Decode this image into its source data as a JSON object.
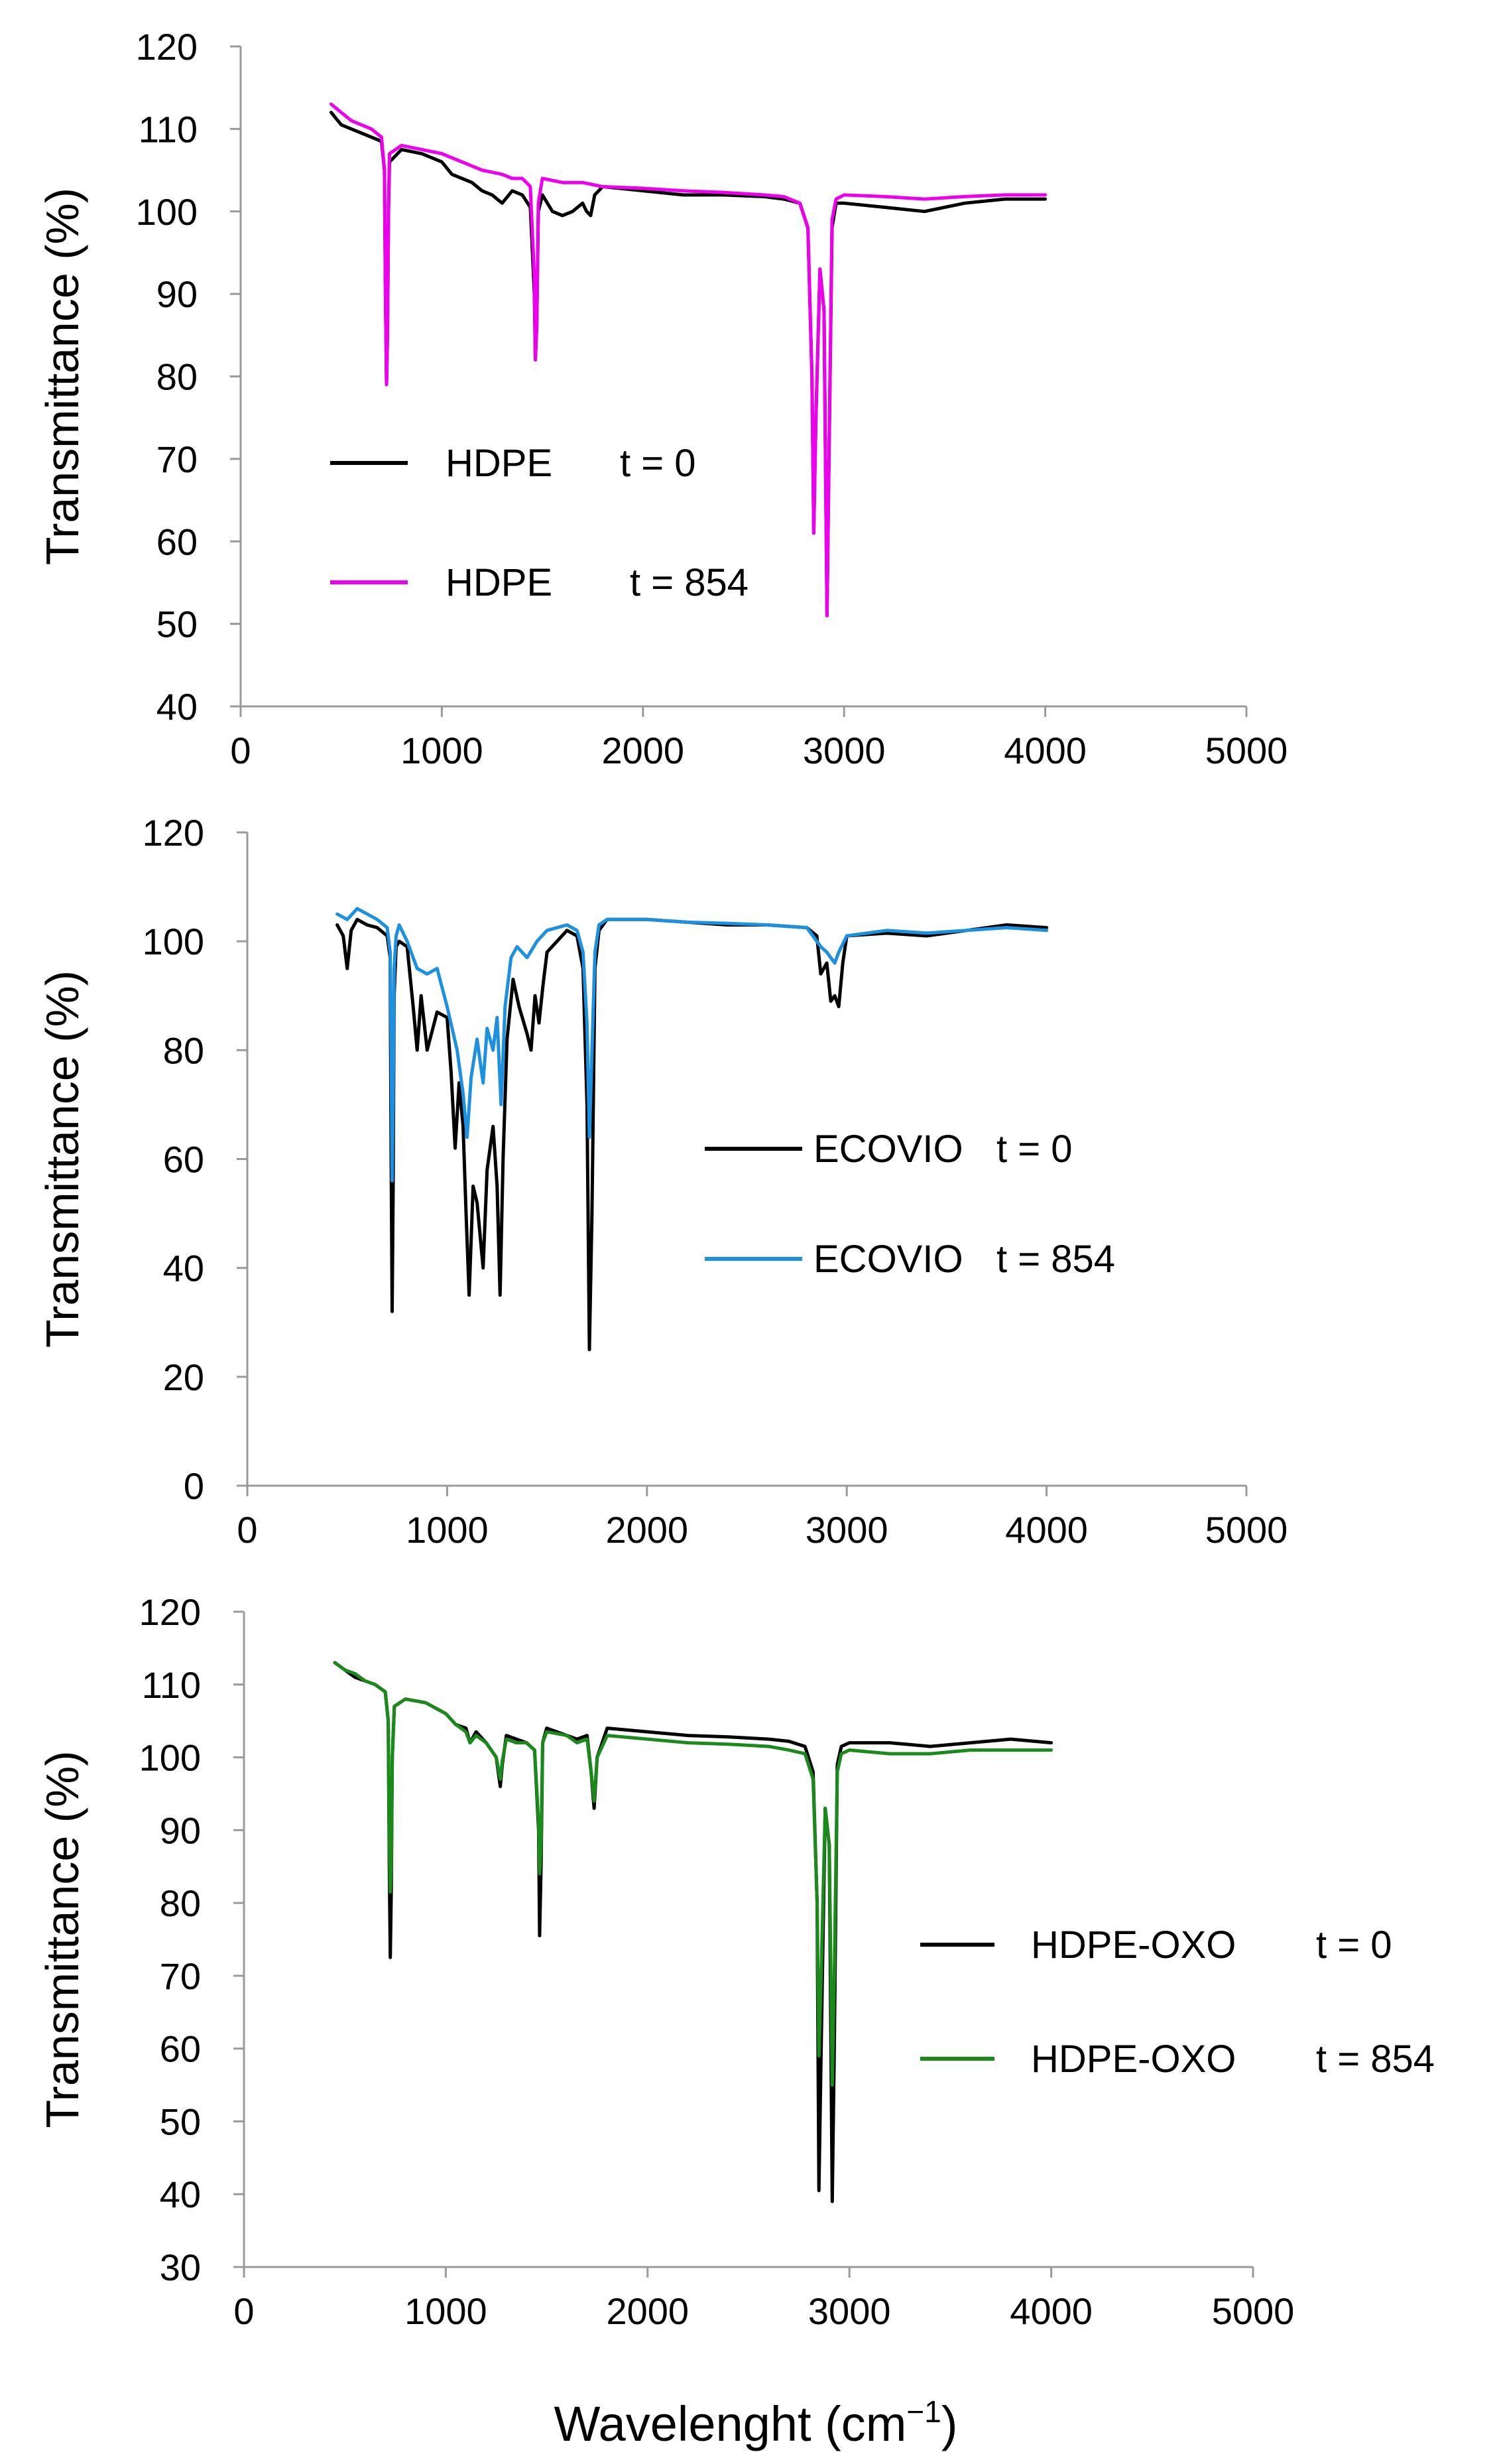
{
  "figure": {
    "xlabel_main": "Wavelenght (cm",
    "xlabel_sup": "−1",
    "xlabel_close": ")"
  },
  "chart_data": [
    {
      "type": "line",
      "id": "hdpe",
      "xlabel": "",
      "ylabel": "Transmittance (%)",
      "xlim": [
        0,
        5000
      ],
      "ylim": [
        40,
        120
      ],
      "xticks": [
        0,
        1000,
        2000,
        3000,
        4000,
        5000
      ],
      "yticks": [
        40,
        50,
        60,
        70,
        80,
        90,
        100,
        110,
        120
      ],
      "series": [
        {
          "name": "HDPE",
          "time_label": "t = 0",
          "color": "#000000",
          "x": [
            450,
            500,
            550,
            600,
            650,
            700,
            715,
            720,
            725,
            730,
            735,
            740,
            800,
            900,
            1000,
            1050,
            1100,
            1150,
            1200,
            1250,
            1300,
            1350,
            1400,
            1440,
            1460,
            1465,
            1472,
            1480,
            1500,
            1550,
            1600,
            1650,
            1700,
            1720,
            1740,
            1760,
            1800,
            2000,
            2200,
            2400,
            2600,
            2700,
            2780,
            2820,
            2840,
            2849,
            2860,
            2880,
            2900,
            2915,
            2925,
            2940,
            2960,
            3000,
            3200,
            3400,
            3600,
            3800,
            4000
          ],
          "y": [
            112.0,
            110.5,
            110.0,
            109.5,
            109.0,
            108.5,
            105.0,
            90.0,
            79.0,
            85.0,
            100.0,
            106.0,
            107.5,
            107.0,
            106.0,
            104.5,
            104.0,
            103.5,
            102.5,
            102.0,
            101.0,
            102.5,
            102.0,
            100.5,
            90.0,
            82.0,
            86.0,
            100.0,
            102.0,
            100.0,
            99.5,
            100.0,
            101.0,
            100.0,
            99.5,
            102.0,
            103.0,
            102.5,
            102.0,
            102.0,
            101.8,
            101.5,
            101.0,
            98.0,
            80.0,
            61.0,
            75.0,
            93.0,
            88.0,
            51.0,
            70.0,
            98.0,
            101.0,
            101.0,
            100.5,
            100.0,
            101.0,
            101.5,
            101.5
          ]
        },
        {
          "name": "HDPE",
          "time_label": "t = 854",
          "color": "#ee00ee",
          "x": [
            450,
            500,
            550,
            600,
            650,
            700,
            715,
            720,
            725,
            730,
            735,
            740,
            800,
            900,
            1000,
            1100,
            1200,
            1300,
            1350,
            1400,
            1440,
            1460,
            1465,
            1472,
            1480,
            1500,
            1600,
            1700,
            1800,
            2000,
            2200,
            2400,
            2600,
            2700,
            2780,
            2820,
            2840,
            2849,
            2860,
            2880,
            2900,
            2915,
            2925,
            2940,
            2960,
            3000,
            3200,
            3400,
            3600,
            3800,
            4000
          ],
          "y": [
            113.0,
            112.0,
            111.0,
            110.5,
            110.0,
            109.0,
            105.0,
            90.0,
            79.0,
            85.0,
            100.0,
            107.0,
            108.0,
            107.5,
            107.0,
            106.0,
            105.0,
            104.5,
            104.0,
            104.0,
            103.0,
            92.0,
            82.0,
            86.0,
            101.0,
            104.0,
            103.5,
            103.5,
            103.0,
            102.8,
            102.5,
            102.3,
            102.0,
            101.8,
            101.0,
            98.0,
            80.0,
            61.0,
            75.0,
            93.0,
            88.0,
            51.0,
            70.0,
            99.0,
            101.5,
            102.0,
            101.8,
            101.5,
            101.8,
            102.0,
            102.0
          ]
        }
      ]
    },
    {
      "type": "line",
      "id": "ecovio",
      "xlabel": "",
      "ylabel": "Transmittance (%)",
      "xlim": [
        0,
        5000
      ],
      "ylim": [
        0,
        120
      ],
      "xticks": [
        0,
        1000,
        2000,
        3000,
        4000,
        5000
      ],
      "yticks": [
        0,
        20,
        40,
        60,
        80,
        100,
        120
      ],
      "series": [
        {
          "name": "ECOVIO",
          "time_label": "t = 0",
          "color": "#000000",
          "x": [
            450,
            480,
            500,
            520,
            550,
            600,
            650,
            700,
            715,
            720,
            725,
            730,
            735,
            745,
            760,
            800,
            830,
            850,
            870,
            900,
            950,
            1000,
            1020,
            1040,
            1060,
            1080,
            1095,
            1110,
            1130,
            1150,
            1180,
            1200,
            1230,
            1250,
            1265,
            1280,
            1300,
            1330,
            1360,
            1400,
            1420,
            1440,
            1460,
            1480,
            1500,
            1550,
            1600,
            1650,
            1680,
            1700,
            1712,
            1725,
            1740,
            1760,
            1800,
            2000,
            2200,
            2400,
            2600,
            2800,
            2850,
            2870,
            2900,
            2920,
            2940,
            2960,
            2980,
            3000,
            3200,
            3400,
            3600,
            3800,
            4000
          ],
          "y": [
            103.0,
            101.0,
            95.0,
            102.0,
            104.0,
            103.0,
            102.5,
            101.0,
            97.0,
            60.0,
            32.0,
            55.0,
            90.0,
            99.0,
            100.0,
            99.0,
            88.0,
            80.0,
            90.0,
            80.0,
            87.0,
            86.0,
            76.0,
            62.0,
            74.0,
            66.0,
            50.0,
            35.0,
            55.0,
            52.0,
            40.0,
            58.0,
            66.0,
            55.0,
            35.0,
            60.0,
            82.0,
            93.0,
            88.0,
            83.0,
            80.0,
            90.0,
            85.0,
            92.0,
            98.0,
            100.0,
            102.0,
            101.0,
            95.0,
            70.0,
            25.0,
            50.0,
            95.0,
            102.0,
            104.0,
            104.0,
            103.5,
            103.0,
            103.0,
            102.5,
            101.0,
            94.0,
            96.0,
            89.0,
            90.0,
            88.0,
            96.0,
            101.0,
            101.5,
            101.0,
            102.0,
            103.0,
            102.5
          ]
        },
        {
          "name": "ECOVIO",
          "time_label": "t = 854",
          "color": "#1e90e0",
          "x": [
            450,
            500,
            550,
            600,
            650,
            700,
            715,
            720,
            725,
            730,
            735,
            745,
            760,
            800,
            850,
            900,
            950,
            1000,
            1050,
            1080,
            1100,
            1120,
            1150,
            1180,
            1200,
            1230,
            1250,
            1270,
            1290,
            1320,
            1350,
            1400,
            1450,
            1500,
            1600,
            1650,
            1680,
            1700,
            1712,
            1725,
            1740,
            1760,
            1800,
            2000,
            2200,
            2400,
            2600,
            2800,
            2870,
            2900,
            2940,
            2960,
            3000,
            3200,
            3400,
            3600,
            3800,
            4000
          ],
          "y": [
            105.0,
            104.0,
            106.0,
            105.0,
            104.0,
            102.5,
            98.0,
            80.0,
            56.0,
            70.0,
            95.0,
            101.0,
            103.0,
            100.0,
            95.0,
            94.0,
            95.0,
            88.0,
            80.0,
            72.0,
            64.0,
            75.0,
            82.0,
            74.0,
            84.0,
            80.0,
            86.0,
            70.0,
            88.0,
            97.0,
            99.0,
            97.0,
            100.0,
            102.0,
            103.0,
            102.0,
            98.0,
            85.0,
            64.0,
            80.0,
            98.0,
            103.0,
            104.0,
            104.0,
            103.5,
            103.3,
            103.0,
            102.5,
            99.0,
            98.0,
            96.0,
            98.0,
            101.0,
            102.0,
            101.5,
            102.0,
            102.5,
            102.0
          ]
        }
      ]
    },
    {
      "type": "line",
      "id": "hdpe-oxo",
      "xlabel": "",
      "ylabel": "Transmittance (%)",
      "xlim": [
        0,
        5000
      ],
      "ylim": [
        30,
        120
      ],
      "xticks": [
        0,
        1000,
        2000,
        3000,
        4000,
        5000
      ],
      "yticks": [
        30,
        40,
        50,
        60,
        70,
        80,
        90,
        100,
        110,
        120
      ],
      "series": [
        {
          "name": "HDPE-OXO",
          "time_label": "t = 0",
          "color": "#000000",
          "x": [
            450,
            500,
            550,
            600,
            650,
            700,
            715,
            720,
            725,
            730,
            735,
            745,
            800,
            900,
            1000,
            1050,
            1100,
            1120,
            1150,
            1200,
            1250,
            1270,
            1280,
            1300,
            1350,
            1400,
            1440,
            1460,
            1465,
            1472,
            1480,
            1500,
            1600,
            1650,
            1700,
            1720,
            1735,
            1750,
            1800,
            2000,
            2200,
            2400,
            2600,
            2700,
            2780,
            2820,
            2840,
            2849,
            2860,
            2880,
            2900,
            2915,
            2925,
            2940,
            2960,
            3000,
            3200,
            3400,
            3600,
            3800,
            4000
          ],
          "y": [
            113.0,
            112.0,
            111.0,
            110.5,
            110.0,
            109.0,
            105.0,
            85.0,
            72.5,
            82.0,
            100.0,
            107.0,
            108.0,
            107.5,
            106.0,
            104.5,
            104.0,
            102.0,
            103.5,
            102.0,
            100.0,
            96.0,
            99.0,
            103.0,
            102.5,
            102.0,
            101.0,
            90.0,
            75.5,
            85.0,
            102.0,
            104.0,
            103.0,
            102.5,
            103.0,
            98.0,
            93.0,
            100.0,
            104.0,
            103.5,
            103.0,
            102.8,
            102.5,
            102.2,
            101.5,
            98.0,
            80.0,
            40.5,
            60.0,
            93.0,
            88.0,
            39.0,
            60.0,
            99.0,
            101.5,
            102.0,
            102.0,
            101.5,
            102.0,
            102.5,
            102.0
          ]
        },
        {
          "name": "HDPE-OXO",
          "time_label": "t = 854",
          "color": "#1a8a1a",
          "x": [
            450,
            500,
            550,
            600,
            650,
            700,
            715,
            720,
            725,
            730,
            735,
            745,
            800,
            900,
            1000,
            1050,
            1100,
            1120,
            1150,
            1200,
            1250,
            1270,
            1280,
            1300,
            1350,
            1400,
            1440,
            1460,
            1465,
            1472,
            1480,
            1500,
            1600,
            1650,
            1700,
            1720,
            1735,
            1750,
            1800,
            2000,
            2200,
            2400,
            2600,
            2700,
            2780,
            2820,
            2840,
            2849,
            2860,
            2880,
            2900,
            2915,
            2925,
            2940,
            2960,
            3000,
            3200,
            3400,
            3600,
            3800,
            4000
          ],
          "y": [
            113.0,
            112.0,
            111.5,
            110.5,
            110.0,
            109.0,
            105.0,
            88.0,
            81.5,
            85.0,
            100.0,
            107.0,
            108.0,
            107.5,
            106.0,
            104.5,
            103.5,
            102.0,
            103.0,
            102.0,
            100.0,
            97.0,
            99.5,
            102.5,
            102.0,
            102.0,
            101.0,
            91.0,
            84.0,
            88.0,
            102.0,
            103.5,
            103.0,
            102.0,
            102.5,
            98.0,
            94.0,
            100.0,
            103.0,
            102.5,
            102.0,
            101.8,
            101.5,
            101.0,
            100.5,
            97.0,
            80.0,
            59.0,
            70.0,
            93.0,
            88.0,
            55.0,
            70.0,
            98.0,
            100.5,
            101.0,
            100.5,
            100.5,
            101.0,
            101.0,
            101.0
          ]
        }
      ]
    }
  ]
}
